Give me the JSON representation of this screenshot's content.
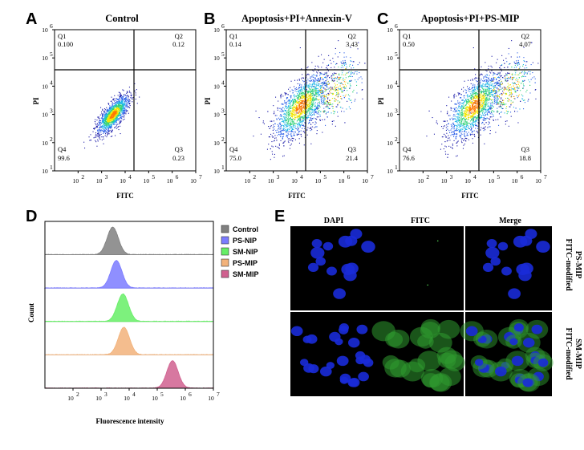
{
  "figure": {
    "panels": {
      "A": {
        "letter": "A",
        "title": "Control",
        "ylabel": "PI",
        "xlabel": "FITC",
        "quadrants": {
          "q1_label": "Q1",
          "q1_value": "0.100",
          "q2_label": "Q2",
          "q2_value": "0.12",
          "q3_label": "Q3",
          "q3_value": "0.23",
          "q4_label": "Q4",
          "q4_value": "99.6"
        }
      },
      "B": {
        "letter": "B",
        "title": "Apoptosis+PI+Annexin-V",
        "ylabel": "PI",
        "xlabel": "FITC",
        "quadrants": {
          "q1_label": "Q1",
          "q1_value": "0.14",
          "q2_label": "Q2",
          "q2_value": "3.43",
          "q3_label": "Q3",
          "q3_value": "21.4",
          "q4_label": "Q4",
          "q4_value": "75.0"
        }
      },
      "C": {
        "letter": "C",
        "title": "Apoptosis+PI+PS-MIP",
        "ylabel": "PI",
        "xlabel": "FITC",
        "quadrants": {
          "q1_label": "Q1",
          "q1_value": "0.50",
          "q2_label": "Q2",
          "q2_value": "4.07",
          "q3_label": "Q3",
          "q3_value": "18.8",
          "q4_label": "Q4",
          "q4_value": "76.6"
        }
      },
      "D": {
        "letter": "D",
        "ylabel": "Count",
        "xlabel": "Fluorescence intensity"
      },
      "E": {
        "letter": "E",
        "col_headers": [
          "DAPI",
          "FITC",
          "Merge"
        ],
        "row_labels": [
          [
            "FITC-modified",
            "PS-MIP"
          ],
          [
            "FITC-modified",
            "SM-MIP"
          ]
        ]
      }
    },
    "colors": {
      "control": "#808080",
      "ps_nip": "#7b7bff",
      "sm_nip": "#66ee66",
      "ps_mip": "#f2b27a",
      "sm_mip": "#d0608f",
      "dapi": "#1a2bd8",
      "fitc": "#2f9a2f"
    },
    "legend": [
      {
        "label": "Control",
        "color": "#808080"
      },
      {
        "label": "PS-NIP",
        "color": "#7b7bff"
      },
      {
        "label": "SM-NIP",
        "color": "#66ee66"
      },
      {
        "label": "PS-MIP",
        "color": "#f2b27a"
      },
      {
        "label": "SM-MIP",
        "color": "#d0608f"
      }
    ]
  },
  "chart_data": [
    {
      "type": "scatter",
      "title": "Control",
      "xlabel": "FITC",
      "ylabel": "PI",
      "xscale": "log",
      "yscale": "log",
      "xlim": [
        10,
        10000000
      ],
      "ylim": [
        10,
        1000000
      ],
      "x_ticks": [
        [
          "10",
          "2"
        ],
        [
          "10",
          "3"
        ],
        [
          "10",
          "4"
        ],
        [
          "10",
          "5"
        ],
        [
          "10",
          "6"
        ],
        [
          "10",
          "7"
        ]
      ],
      "y_ticks": [
        [
          "10",
          "1"
        ],
        [
          "10",
          "2"
        ],
        [
          "10",
          "3"
        ],
        [
          "10",
          "4"
        ],
        [
          "10",
          "5"
        ],
        [
          "10",
          "6"
        ]
      ],
      "gates": {
        "x": 100000,
        "y": 30000
      },
      "quadrant_percent": {
        "Q1": 0.1,
        "Q2": 0.12,
        "Q3": 0.23,
        "Q4": 99.6
      },
      "cloud": {
        "center_x": 3000,
        "center_y": 1000,
        "axis": "diagonal"
      }
    },
    {
      "type": "scatter",
      "title": "Apoptosis+PI+Annexin-V",
      "xlabel": "FITC",
      "ylabel": "PI",
      "xscale": "log",
      "yscale": "log",
      "xlim": [
        10,
        10000000
      ],
      "ylim": [
        10,
        1000000
      ],
      "x_ticks": [
        [
          "10",
          "2"
        ],
        [
          "10",
          "3"
        ],
        [
          "10",
          "4"
        ],
        [
          "10",
          "5"
        ],
        [
          "10",
          "6"
        ],
        [
          "10",
          "7"
        ]
      ],
      "y_ticks": [
        [
          "10",
          "1"
        ],
        [
          "10",
          "2"
        ],
        [
          "10",
          "3"
        ],
        [
          "10",
          "4"
        ],
        [
          "10",
          "5"
        ],
        [
          "10",
          "6"
        ]
      ],
      "gates": {
        "x": 100000,
        "y": 30000
      },
      "quadrant_percent": {
        "Q1": 0.14,
        "Q2": 3.43,
        "Q3": 21.4,
        "Q4": 75.0
      },
      "cloud": {
        "center_x": 15000,
        "center_y": 2000,
        "axis": "diagonal"
      }
    },
    {
      "type": "scatter",
      "title": "Apoptosis+PI+PS-MIP",
      "xlabel": "FITC",
      "ylabel": "PI",
      "xscale": "log",
      "yscale": "log",
      "xlim": [
        10,
        10000000
      ],
      "ylim": [
        10,
        1000000
      ],
      "x_ticks": [
        [
          "10",
          "2"
        ],
        [
          "10",
          "3"
        ],
        [
          "10",
          "4"
        ],
        [
          "10",
          "5"
        ],
        [
          "10",
          "6"
        ],
        [
          "10",
          "7"
        ]
      ],
      "y_ticks": [
        [
          "10",
          "1"
        ],
        [
          "10",
          "2"
        ],
        [
          "10",
          "3"
        ],
        [
          "10",
          "4"
        ],
        [
          "10",
          "5"
        ],
        [
          "10",
          "6"
        ]
      ],
      "gates": {
        "x": 100000,
        "y": 30000
      },
      "quadrant_percent": {
        "Q1": 0.5,
        "Q2": 4.07,
        "Q3": 18.8,
        "Q4": 76.6
      },
      "cloud": {
        "center_x": 15000,
        "center_y": 2000,
        "axis": "diagonal"
      }
    },
    {
      "type": "area",
      "xlabel": "Fluorescence intensity",
      "ylabel": "Count",
      "xscale": "log",
      "xlim": [
        10,
        10000000
      ],
      "x_ticks": [
        [
          "10",
          "2"
        ],
        [
          "10",
          "3"
        ],
        [
          "10",
          "4"
        ],
        [
          "10",
          "5"
        ],
        [
          "10",
          "6"
        ],
        [
          "10",
          "7"
        ]
      ],
      "series": [
        {
          "name": "Control",
          "peak_x": 2600,
          "color": "#808080"
        },
        {
          "name": "PS-NIP",
          "peak_x": 3500,
          "color": "#7b7bff"
        },
        {
          "name": "SM-NIP",
          "peak_x": 6000,
          "color": "#66ee66"
        },
        {
          "name": "PS-MIP",
          "peak_x": 6500,
          "color": "#f2b27a"
        },
        {
          "name": "SM-MIP",
          "peak_x": 350000,
          "color": "#d0608f"
        }
      ]
    }
  ]
}
